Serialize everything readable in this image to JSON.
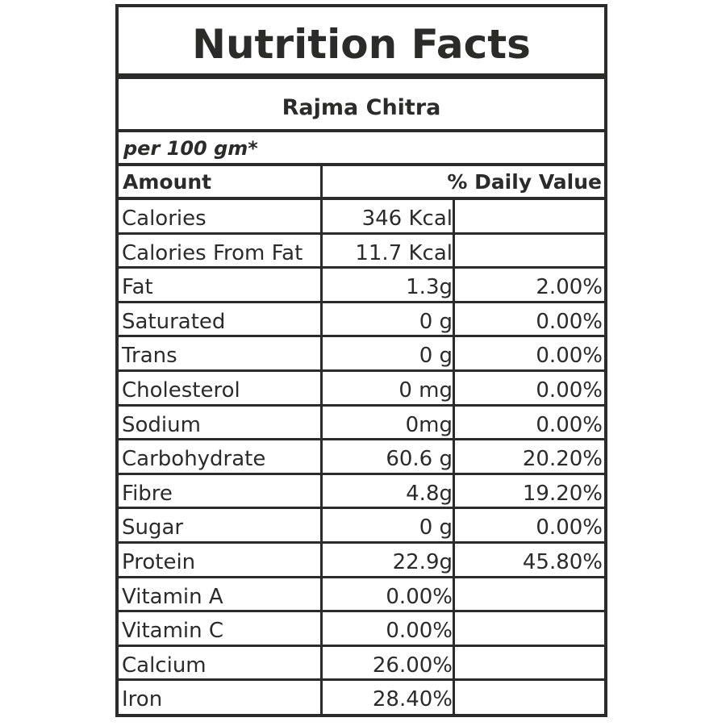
{
  "label": {
    "title": "Nutrition Facts",
    "product": "Rajma Chitra",
    "serving": "per 100 gm*",
    "header_amount": "Amount",
    "header_dv": "% Daily Value",
    "rows": [
      {
        "name": "Calories",
        "amount": "346 Kcal",
        "dv": ""
      },
      {
        "name": "Calories From Fat",
        "amount": "11.7 Kcal",
        "dv": ""
      },
      {
        "name": "Fat",
        "amount": "1.3g",
        "dv": "2.00%"
      },
      {
        "name": "Saturated",
        "amount": "0 g",
        "dv": "0.00%"
      },
      {
        "name": "Trans",
        "amount": "0 g",
        "dv": "0.00%"
      },
      {
        "name": "Cholesterol",
        "amount": "0 mg",
        "dv": "0.00%"
      },
      {
        "name": "Sodium",
        "amount": "0mg",
        "dv": "0.00%"
      },
      {
        "name": "Carbohydrate",
        "amount": "60.6 g",
        "dv": "20.20%"
      },
      {
        "name": "Fibre",
        "amount": "4.8g",
        "dv": "19.20%"
      },
      {
        "name": "Sugar",
        "amount": "0 g",
        "dv": "0.00%"
      },
      {
        "name": "Protein",
        "amount": "22.9g",
        "dv": "45.80%"
      },
      {
        "name": "Vitamin A",
        "amount": "0.00%",
        "dv": ""
      },
      {
        "name": "Vitamin C",
        "amount": "0.00%",
        "dv": ""
      },
      {
        "name": "Calcium",
        "amount": "26.00%",
        "dv": ""
      },
      {
        "name": "Iron",
        "amount": "28.40%",
        "dv": ""
      }
    ]
  },
  "colors": {
    "ink": "#2b2b29",
    "background": "#ffffff"
  }
}
